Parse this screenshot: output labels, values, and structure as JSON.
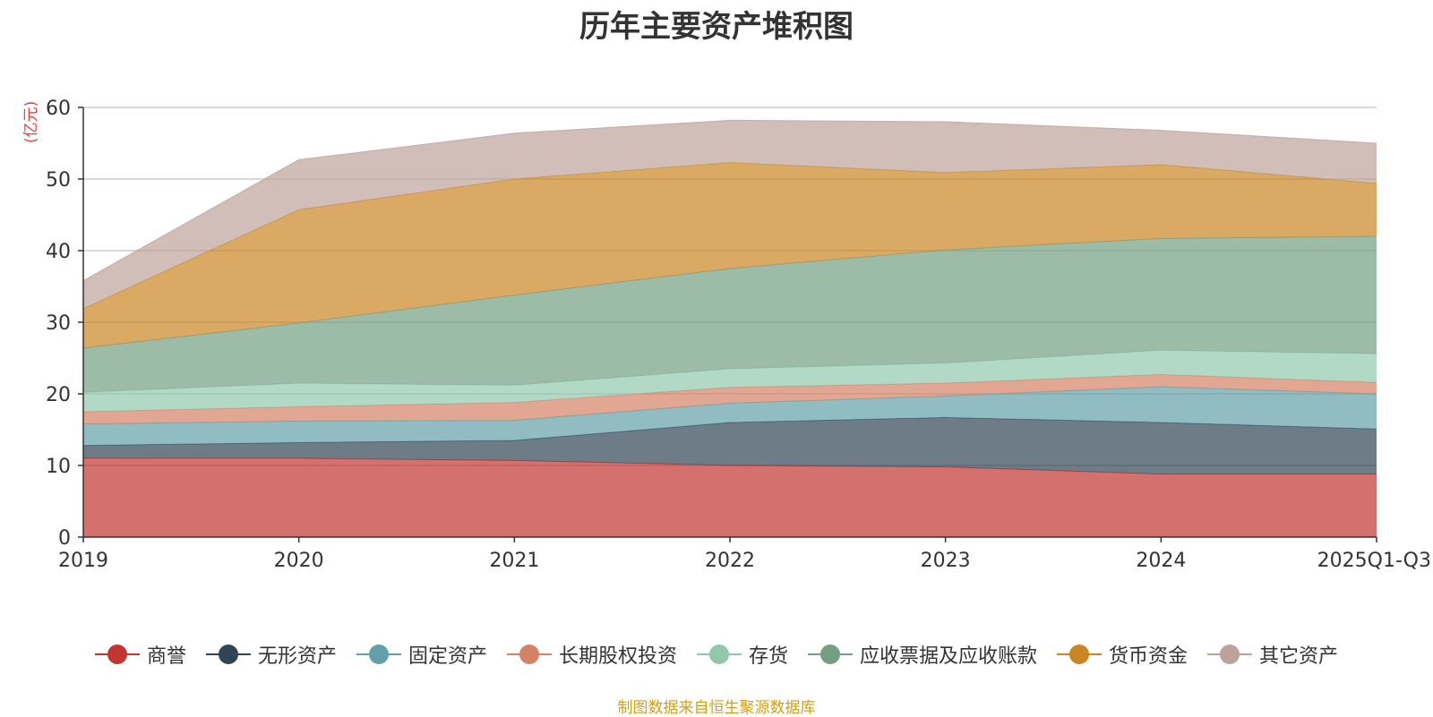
{
  "chart_data": {
    "type": "area",
    "stacked": true,
    "title": "历年主要资产堆积图",
    "ylabel": "(亿元)",
    "ylim": [
      0,
      60
    ],
    "yticks": [
      0,
      10,
      20,
      30,
      40,
      50,
      60
    ],
    "categories": [
      "2019",
      "2020",
      "2021",
      "2022",
      "2023",
      "2024",
      "2025Q1-Q3"
    ],
    "series": [
      {
        "name": "商誉",
        "color": "#c23531",
        "values": [
          11.0,
          11.0,
          10.7,
          10.0,
          9.8,
          8.8,
          8.8
        ]
      },
      {
        "name": "无形资产",
        "color": "#2f4554",
        "values": [
          1.8,
          2.2,
          2.8,
          6.0,
          6.9,
          7.2,
          6.3
        ]
      },
      {
        "name": "固定资产",
        "color": "#61a0a8",
        "values": [
          3.0,
          3.0,
          2.8,
          2.7,
          3.0,
          5.0,
          4.9
        ]
      },
      {
        "name": "长期股权投资",
        "color": "#d48265",
        "values": [
          1.7,
          2.0,
          2.5,
          2.2,
          1.8,
          1.7,
          1.6
        ]
      },
      {
        "name": "存货",
        "color": "#91c7ae",
        "values": [
          2.7,
          3.3,
          2.4,
          2.6,
          2.8,
          3.4,
          4.0
        ]
      },
      {
        "name": "应收票据及应收账款",
        "color": "#749f83",
        "values": [
          6.2,
          8.4,
          12.6,
          14.0,
          15.8,
          15.6,
          16.4
        ]
      },
      {
        "name": "货币资金",
        "color": "#ca8622",
        "values": [
          5.5,
          15.8,
          16.2,
          14.8,
          10.8,
          10.3,
          7.4
        ]
      },
      {
        "name": "其它资产",
        "color": "#bda29a",
        "values": [
          3.9,
          7.0,
          6.4,
          5.9,
          7.1,
          4.8,
          5.6
        ]
      }
    ]
  },
  "source_note": "制图数据来自恒生聚源数据库"
}
